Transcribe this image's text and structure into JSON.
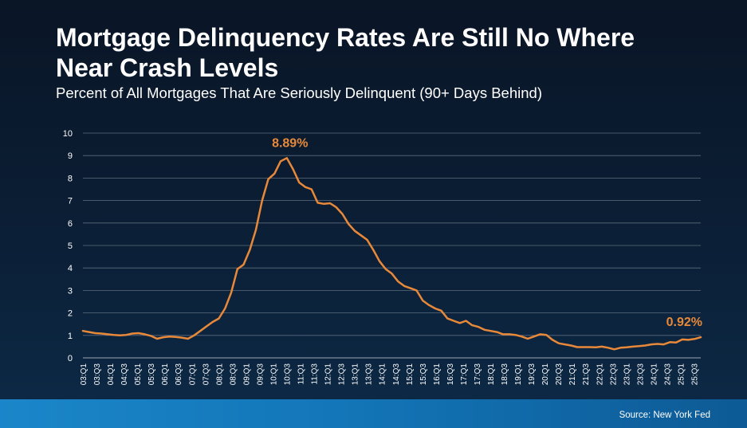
{
  "header": {
    "title": "Mortgage Delinquency Rates Are Still No Where Near Crash Levels",
    "subtitle": "Percent of All Mortgages That Are Seriously Delinquent (90+ Days Behind)"
  },
  "footer": {
    "source": "Source: New York Fed"
  },
  "colors": {
    "line": "#e8893a",
    "gridline": "#5d6b7c",
    "text": "#ffffff"
  },
  "chart_data": {
    "type": "line",
    "title": "",
    "xlabel": "",
    "ylabel": "",
    "ylim": [
      0,
      10
    ],
    "yticks": [
      0,
      1,
      2,
      3,
      4,
      5,
      6,
      7,
      8,
      9,
      10
    ],
    "grid": true,
    "xtick_labels": [
      "03:Q1",
      "03:Q3",
      "04:Q1",
      "04:Q3",
      "05:Q1",
      "05:Q3",
      "06:Q1",
      "06:Q3",
      "07:Q1",
      "07:Q3",
      "08:Q1",
      "08:Q3",
      "09:Q1",
      "09:Q3",
      "10:Q1",
      "10:Q3",
      "11:Q1",
      "11:Q3",
      "12:Q1",
      "12:Q3",
      "13:Q1",
      "13:Q3",
      "14:Q1",
      "14:Q3",
      "15:Q1",
      "15:Q3",
      "16:Q1",
      "16:Q3",
      "17:Q1",
      "17:Q3",
      "18:Q1",
      "18:Q3",
      "19:Q1",
      "19:Q3",
      "20:Q1",
      "20:Q3",
      "21:Q1",
      "21:Q3",
      "22:Q1",
      "22:Q3",
      "23:Q1",
      "23:Q3",
      "24:Q1",
      "24:Q3",
      "25:Q1",
      "25:Q3"
    ],
    "series": [
      {
        "values": [
          1.2,
          1.15,
          1.1,
          1.08,
          1.05,
          1.02,
          1.0,
          1.02,
          1.08,
          1.1,
          1.05,
          0.98,
          0.85,
          0.92,
          0.95,
          0.93,
          0.9,
          0.85,
          1.0,
          1.2,
          1.4,
          1.6,
          1.75,
          2.2,
          2.9,
          3.95,
          4.15,
          4.8,
          5.7,
          7.0,
          7.95,
          8.2,
          8.75,
          8.89,
          8.4,
          7.8,
          7.6,
          7.5,
          6.9,
          6.85,
          6.88,
          6.7,
          6.4,
          5.95,
          5.65,
          5.45,
          5.25,
          4.8,
          4.3,
          3.95,
          3.75,
          3.4,
          3.2,
          3.1,
          3.0,
          2.55,
          2.35,
          2.2,
          2.1,
          1.75,
          1.65,
          1.55,
          1.65,
          1.45,
          1.38,
          1.25,
          1.2,
          1.15,
          1.05,
          1.05,
          1.02,
          0.95,
          0.85,
          0.95,
          1.05,
          1.02,
          0.8,
          0.65,
          0.6,
          0.55,
          0.48,
          0.48,
          0.48,
          0.47,
          0.5,
          0.45,
          0.38,
          0.45,
          0.47,
          0.5,
          0.52,
          0.55,
          0.6,
          0.62,
          0.6,
          0.7,
          0.68,
          0.82,
          0.8,
          0.84,
          0.92
        ]
      }
    ],
    "annotations": [
      {
        "text": "8.89%",
        "value": 8.89,
        "index": 33
      },
      {
        "text": "0.92%",
        "value": 0.92,
        "index": 100
      }
    ]
  }
}
